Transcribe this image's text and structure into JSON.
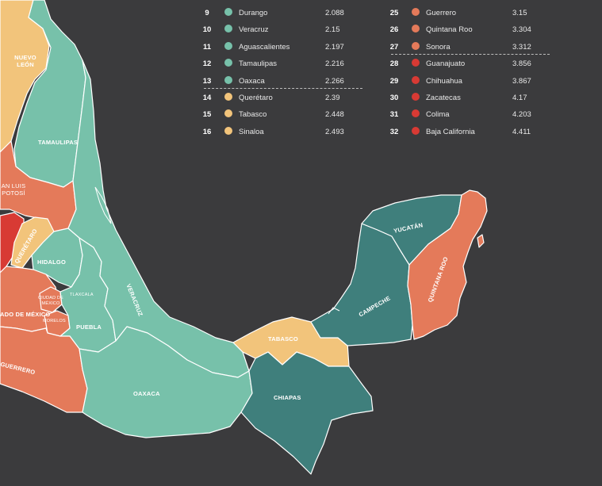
{
  "colors": {
    "background": "#3b3b3d",
    "teal_light": "#77c1aa",
    "teal_dark": "#3f7f7c",
    "yellow": "#f2c47b",
    "orange": "#e47a5a",
    "red": "#d83a34",
    "border": "#ffffff"
  },
  "legend": {
    "left_rows": [
      {
        "rank": "9",
        "name": "Durango",
        "value": "2.088",
        "color": "#77c1aa"
      },
      {
        "rank": "10",
        "name": "Veracruz",
        "value": "2.15",
        "color": "#77c1aa"
      },
      {
        "rank": "11",
        "name": "Aguascalientes",
        "value": "2.197",
        "color": "#77c1aa"
      },
      {
        "rank": "12",
        "name": "Tamaulipas",
        "value": "2.216",
        "color": "#77c1aa"
      },
      {
        "rank": "13",
        "name": "Oaxaca",
        "value": "2.266",
        "color": "#77c1aa"
      },
      {
        "rank": "14",
        "name": "Querétaro",
        "value": "2.39",
        "color": "#f2c47b"
      },
      {
        "rank": "15",
        "name": "Tabasco",
        "value": "2.448",
        "color": "#f2c47b"
      },
      {
        "rank": "16",
        "name": "Sinaloa",
        "value": "2.493",
        "color": "#f2c47b"
      }
    ],
    "right_rows": [
      {
        "rank": "25",
        "name": "Guerrero",
        "value": "3.15",
        "color": "#e47a5a"
      },
      {
        "rank": "26",
        "name": "Quintana Roo",
        "value": "3.304",
        "color": "#e47a5a"
      },
      {
        "rank": "27",
        "name": "Sonora",
        "value": "3.312",
        "color": "#e47a5a"
      },
      {
        "rank": "28",
        "name": "Guanajuato",
        "value": "3.856",
        "color": "#d83a34"
      },
      {
        "rank": "29",
        "name": "Chihuahua",
        "value": "3.867",
        "color": "#d83a34"
      },
      {
        "rank": "30",
        "name": "Zacatecas",
        "value": "4.17",
        "color": "#d83a34"
      },
      {
        "rank": "31",
        "name": "Colima",
        "value": "4.203",
        "color": "#d83a34"
      },
      {
        "rank": "32",
        "name": "Baja California",
        "value": "4.411",
        "color": "#d83a34"
      }
    ]
  },
  "map_labels": {
    "nuevo_leon": "NUEVO\nLEÓN",
    "tamaulipas": "TAMAULIPAS",
    "san_luis_potosi": "AN LUIS\nPOTOSÍ",
    "queretaro": "QUERÉTARO",
    "hidalgo": "HIDALGO",
    "tlaxcala": "TLAXCALA",
    "veracruz": "VERACRUZ",
    "ciudad_de_mexico": "CIUDAD DE\nMÉXICO",
    "estado_de_mexico": "ADO DE MÉXICO",
    "morelos": "MORELOS",
    "puebla": "PUEBLA",
    "guerrero": "GUERRERO",
    "oaxaca": "OAXACA",
    "tabasco": "TABASCO",
    "chiapas": "CHIAPAS",
    "campeche": "CAMPECHE",
    "yucatan": "YUCATÁN",
    "quintana_roo": "QUINTANA ROO"
  }
}
